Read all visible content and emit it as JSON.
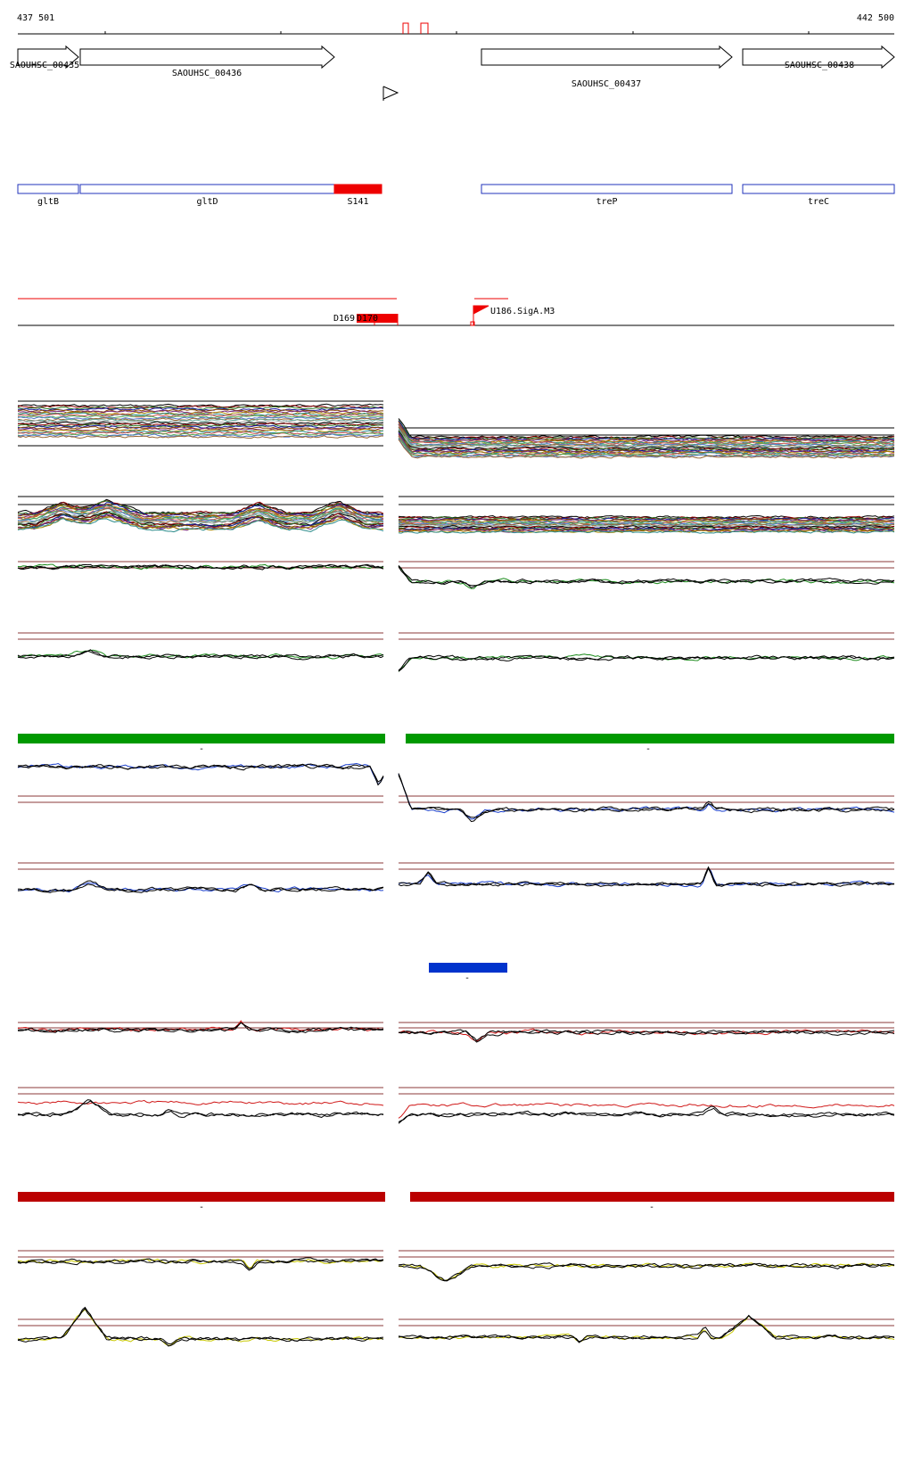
{
  "coords": {
    "start": "437 501",
    "end": "442 500"
  },
  "genes": [
    {
      "id": "SAOUHSC_00435",
      "from": 0,
      "to": 68,
      "strand": "+"
    },
    {
      "id": "SAOUHSC_00436",
      "from": 70,
      "to": 355,
      "strand": "+"
    },
    {
      "id": "SAOUHSC_00437",
      "from": 520,
      "to": 801,
      "strand": "+"
    },
    {
      "id": "SAOUHSC_00438",
      "from": 813,
      "to": 983,
      "strand": "+"
    }
  ],
  "annotations": [
    {
      "name": "gltB",
      "from": 0,
      "to": 68,
      "color": "#2233bb",
      "filled": false
    },
    {
      "name": "gltD",
      "from": 70,
      "to": 355,
      "color": "#2233bb",
      "filled": false
    },
    {
      "name": "S141",
      "from": 355,
      "to": 408,
      "color": "#ee0000",
      "filled": true
    },
    {
      "name": "treP",
      "from": 520,
      "to": 801,
      "color": "#2233bb",
      "filled": false
    },
    {
      "name": "treC",
      "from": 813,
      "to": 983,
      "color": "#2233bb",
      "filled": false
    }
  ],
  "features": [
    {
      "name": "D169",
      "color": "#ee0000"
    },
    {
      "name": "D170",
      "color": "#ee0000"
    },
    {
      "name": "U186.SigA.M3",
      "color": "#ee0000"
    }
  ],
  "condition_bars": [
    {
      "label": "-",
      "color": "#009900"
    },
    {
      "label": "-",
      "color": "#009900"
    },
    {
      "label": "-",
      "color": "#0033cc"
    },
    {
      "label": "-",
      "color": "#bb0000"
    },
    {
      "label": "-",
      "color": "#bb0000"
    }
  ],
  "series_colors": {
    "green": "#1a8a1a",
    "blue": "#1a3fcc",
    "red": "#d01818",
    "yellow": "#c8c800",
    "black": "#000000"
  }
}
